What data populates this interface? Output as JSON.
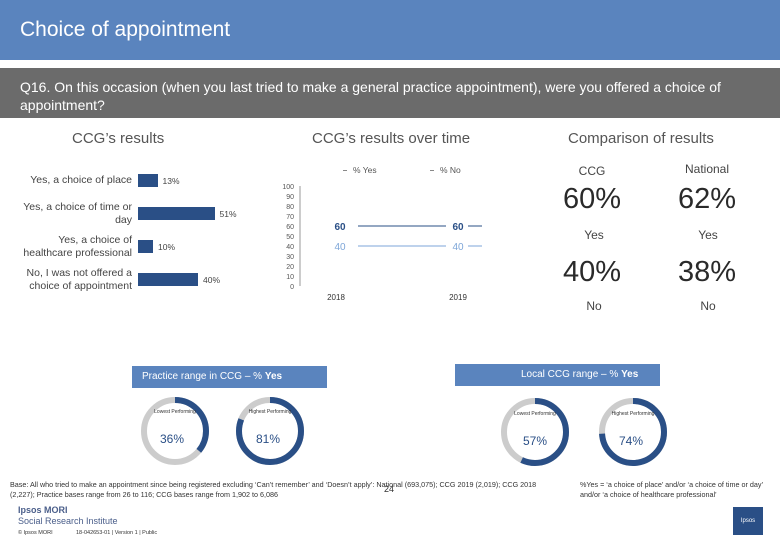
{
  "title": "Choice of appointment",
  "question": "Q16. On this occasion (when you last tried to make a general practice appointment), were you offered a choice of appointment?",
  "headers": {
    "ccg_results": "CCG’s results",
    "over_time": "CCG’s results over time",
    "comparison": "Comparison of results"
  },
  "chart_data": [
    {
      "type": "bar",
      "orientation": "horizontal",
      "title": "CCG’s results",
      "categories": [
        "Yes, a choice of place",
        "Yes, a choice of time or day",
        "Yes, a choice of healthcare professional",
        "No, I was not offered a choice of appointment"
      ],
      "values": [
        13,
        51,
        10,
        40
      ],
      "value_labels": [
        "13%",
        "51%",
        "10%",
        "40%"
      ],
      "xlim": [
        0,
        100
      ]
    },
    {
      "type": "line",
      "title": "CCG’s results over time",
      "x": [
        "2018",
        "2019"
      ],
      "series": [
        {
          "name": "% Yes",
          "values": [
            60,
            60
          ],
          "color": "#2a4f86"
        },
        {
          "name": "% No",
          "values": [
            40,
            40
          ],
          "color": "#7ea6d8"
        }
      ],
      "ylim": [
        0,
        100
      ],
      "yticks": [
        "0",
        "10",
        "20",
        "30",
        "40",
        "50",
        "60",
        "70",
        "80",
        "90",
        "100"
      ],
      "point_labels": [
        [
          "60",
          "60"
        ],
        [
          "40",
          "40"
        ]
      ]
    }
  ],
  "comparison": {
    "col_ccg": "CCG",
    "col_national": "National",
    "yes_ccg": "60%",
    "yes_national": "62%",
    "yes_label": "Yes",
    "no_ccg": "40%",
    "no_national": "38%",
    "no_label": "No"
  },
  "practice_range": {
    "header_prefix": "Practice range in CCG – % ",
    "header_bold": "Yes",
    "lowest_label": "Lowest Performing",
    "highest_label": "Highest Performing",
    "lowest_value": "36%",
    "highest_value": "81%",
    "lowest": 36,
    "highest": 81
  },
  "local_range": {
    "header_prefix": "Local CCG range – % ",
    "header_bold": "Yes",
    "lowest_label": "Lowest Performing",
    "highest_label": "Highest Performing",
    "lowest_value": "57%",
    "highest_value": "74%",
    "lowest": 57,
    "highest": 74
  },
  "base_text": "Base: All who tried to make an appointment since being registered excluding ‘Can’t remember’ and ‘Doesn’t apply’: National (693,075); CCG 2019 (2,019); CCG 2018 (2,227); Practice bases range from 26 to 116; CCG bases range from 1,902 to 6,086",
  "note_text": "%Yes = ‘a choice of place’ and/or ‘a choice of time or day’ and/or ‘a choice of healthcare professional’",
  "page_number": "24",
  "logo_line1": "Ipsos MORI",
  "logo_line2": "Social Research Institute",
  "footer_left": "© Ipsos MORI",
  "footer_right": "18-042653-01 | Version 1 | Public",
  "brand_logo_text": "Ipsos",
  "colors": {
    "title_bg": "#5a84be",
    "question_bg": "#6b6b6b",
    "bar": "#2a4f86",
    "no_line": "#7ea6d8",
    "donut_track": "#cccccc"
  }
}
